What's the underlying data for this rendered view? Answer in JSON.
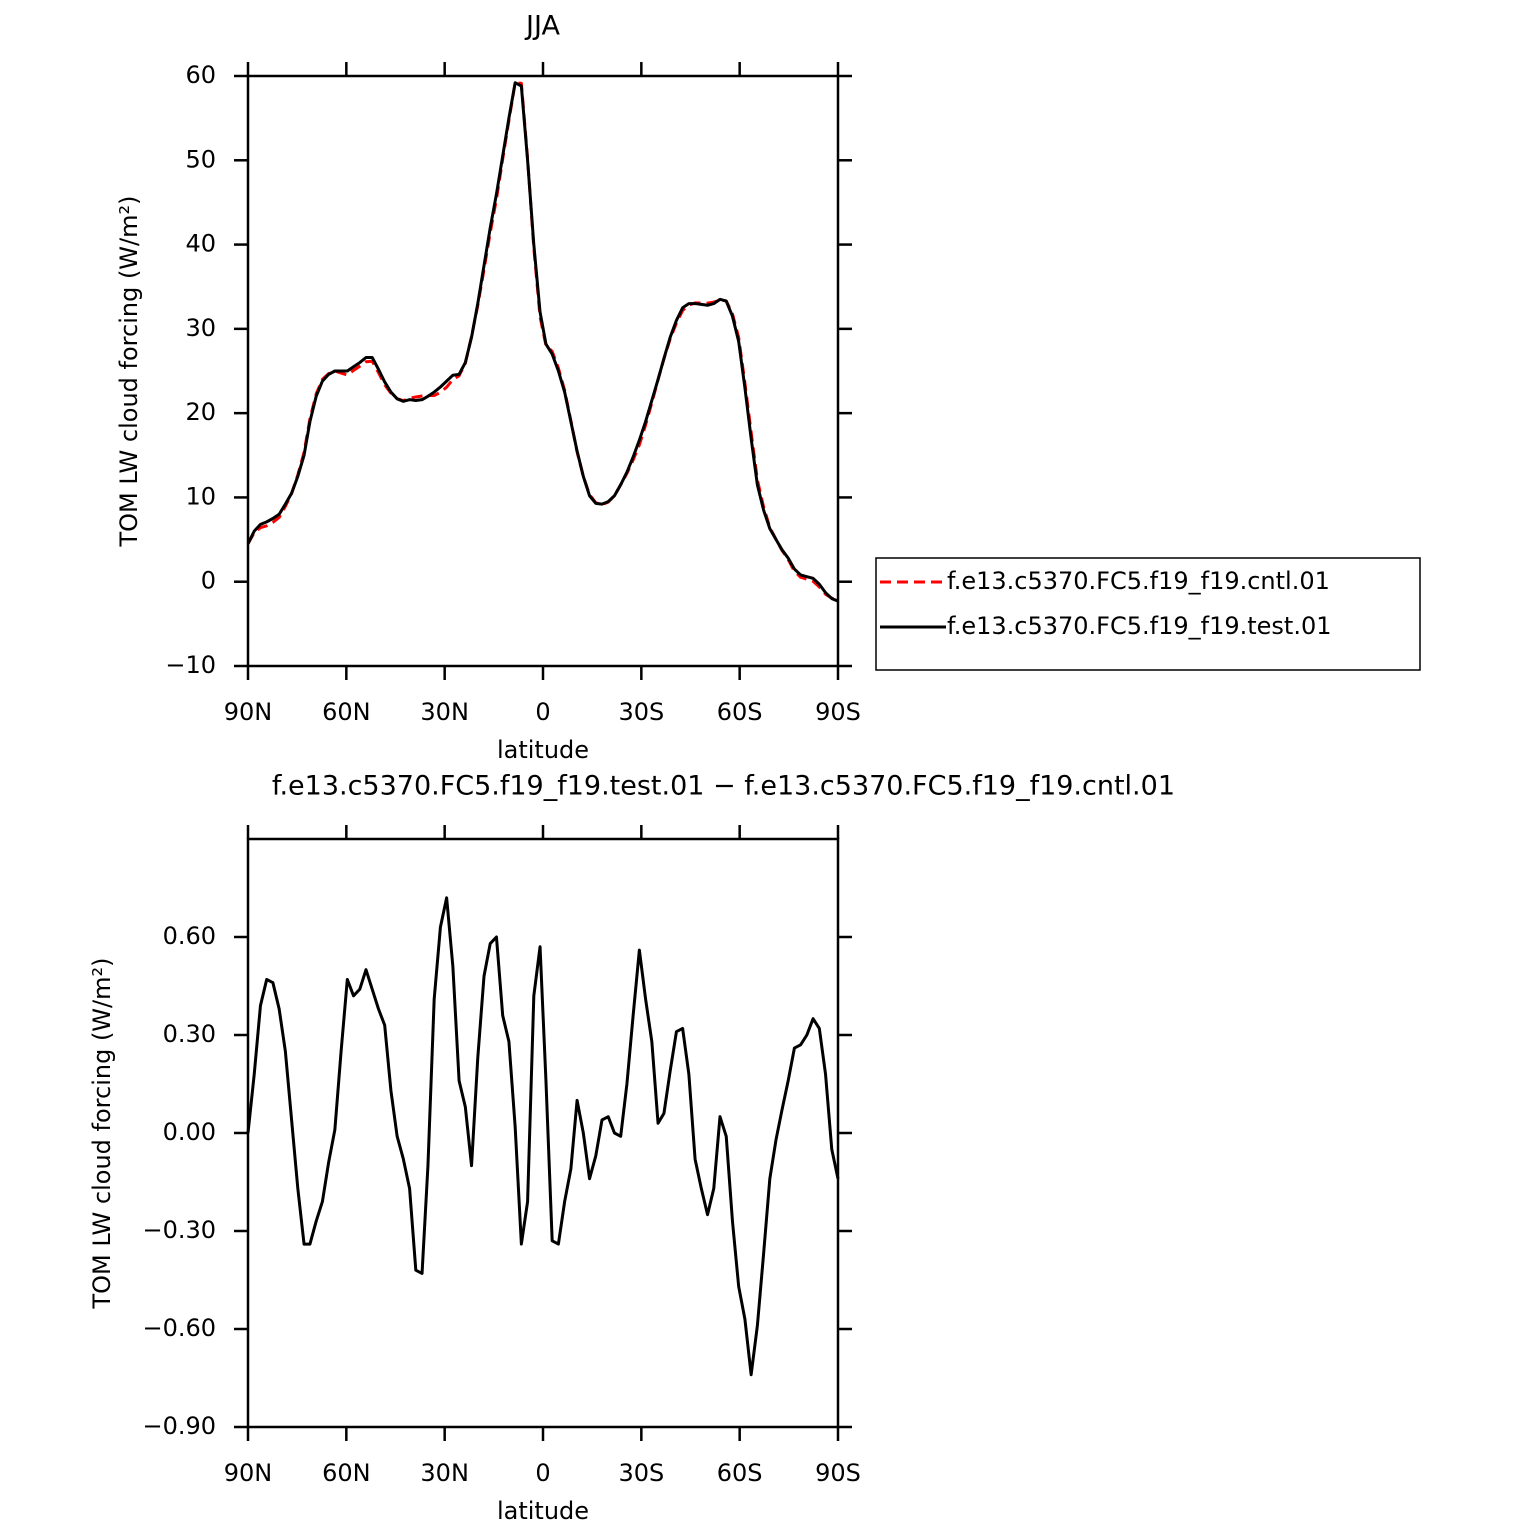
{
  "chart_data": [
    {
      "type": "line",
      "title": "JJA",
      "xlabel": "latitude",
      "ylabel": "TOM LW cloud forcing (W/m²)",
      "x": [
        90,
        88.1,
        86.2,
        84.3,
        82.4,
        80.5,
        78.6,
        76.7,
        74.8,
        72.9,
        71.1,
        69.2,
        67.3,
        65.4,
        63.5,
        61.6,
        59.7,
        57.8,
        55.9,
        54.0,
        52.1,
        50.2,
        48.3,
        46.4,
        44.5,
        42.6,
        40.7,
        38.8,
        36.9,
        35.1,
        33.2,
        31.3,
        29.4,
        27.5,
        25.6,
        23.7,
        21.8,
        19.9,
        18.0,
        16.1,
        14.2,
        12.3,
        10.4,
        8.5,
        6.6,
        4.7,
        2.8,
        0.9,
        -0.9,
        -2.8,
        -4.7,
        -6.6,
        -8.5,
        -10.4,
        -12.3,
        -14.2,
        -16.1,
        -18.0,
        -19.9,
        -21.8,
        -23.7,
        -25.6,
        -27.5,
        -29.4,
        -31.3,
        -33.2,
        -35.1,
        -36.9,
        -38.8,
        -40.7,
        -42.6,
        -44.5,
        -46.4,
        -48.3,
        -50.2,
        -52.1,
        -54.0,
        -55.9,
        -57.8,
        -59.7,
        -61.6,
        -63.5,
        -65.4,
        -67.3,
        -69.2,
        -71.1,
        -72.9,
        -74.8,
        -76.7,
        -78.6,
        -80.5,
        -82.4,
        -84.3,
        -86.2,
        -88.1,
        -90
      ],
      "series": [
        {
          "name": "f.e13.c5370.FC5.f19_f19.cntl.01",
          "color": "#ff0000",
          "linestyle": "dashed",
          "values": [
            4.5,
            5.82,
            6.41,
            6.63,
            7.04,
            7.62,
            8.95,
            10.46,
            12.67,
            15.34,
            19.34,
            22.27,
            24.01,
            24.69,
            24.99,
            24.75,
            24.53,
            25.08,
            25.56,
            26.1,
            26.16,
            24.82,
            23.37,
            22.37,
            21.71,
            21.48,
            21.77,
            21.92,
            22.03,
            22.1,
            22.09,
            22.47,
            23.08,
            23.99,
            24.44,
            25.92,
            29.1,
            32.77,
            37.02,
            41.42,
            45.4,
            50.14,
            54.72,
            59.18,
            59.14,
            50.21,
            39.58,
            31.43,
            28.04,
            27.33,
            25.34,
            22.71,
            19.11,
            15.4,
            12.5,
            10.34,
            9.37,
            9.16,
            9.45,
            10.2,
            11.51,
            12.85,
            14.44,
            16.24,
            18.59,
            21.22,
            23.97,
            26.44,
            28.81,
            30.69,
            32.18,
            32.82,
            33.08,
            33.07,
            33.05,
            33.17,
            33.45,
            33.31,
            31.77,
            28.97,
            23.57,
            17.74,
            12.09,
            8.87,
            6.44,
            5.02,
            3.73,
            2.64,
            1.24,
            0.53,
            0.3,
            0.05,
            -0.62,
            -1.48,
            -1.95,
            -2.16
          ]
        },
        {
          "name": "f.e13.c5370.FC5.f19_f19.test.01",
          "color": "#000000",
          "linestyle": "solid",
          "values": [
            4.5,
            6,
            6.8,
            7.1,
            7.5,
            8.0,
            9.2,
            10.5,
            12.5,
            15,
            19,
            22,
            23.8,
            24.6,
            25,
            25,
            25,
            25.5,
            26,
            26.6,
            26.6,
            25.2,
            23.7,
            22.5,
            21.7,
            21.4,
            21.6,
            21.5,
            21.6,
            22,
            22.5,
            23.1,
            23.8,
            24.5,
            24.6,
            26,
            29,
            33,
            37.5,
            42,
            46,
            50.5,
            55,
            59.2,
            58.8,
            50,
            40,
            32,
            28.2,
            27,
            25,
            22.5,
            19,
            15.5,
            12.5,
            10.2,
            9.3,
            9.2,
            9.5,
            10.2,
            11.5,
            13,
            14.8,
            16.8,
            19,
            21.5,
            24,
            26.5,
            29,
            31,
            32.5,
            33,
            33,
            32.9,
            32.8,
            33,
            33.5,
            33.3,
            31.5,
            28.5,
            23,
            17,
            11.5,
            8.5,
            6.3,
            5,
            3.8,
            2.8,
            1.5,
            0.8,
            0.6,
            0.4,
            -0.3,
            -1.3,
            -2,
            -2.3
          ]
        }
      ],
      "xlim": [
        90,
        -90
      ],
      "xticks": [
        {
          "value": 90,
          "label": "90N"
        },
        {
          "value": 60,
          "label": "60N"
        },
        {
          "value": 30,
          "label": "30N"
        },
        0,
        {
          "value": -30,
          "label": "30S"
        },
        {
          "value": -60,
          "label": "60S"
        },
        {
          "value": -90,
          "label": "90S"
        }
      ],
      "ylim": [
        -10,
        60
      ],
      "yticks": [
        {
          "value": -10,
          "label": "−10"
        },
        0,
        10,
        20,
        30,
        40,
        50,
        60
      ],
      "legend": "right"
    },
    {
      "type": "line",
      "title": "f.e13.c5370.FC5.f19_f19.test.01 − f.e13.c5370.FC5.f19_f19.cntl.01",
      "xlabel": "latitude",
      "ylabel": "TOM LW cloud forcing (W/m²)",
      "x": [
        90,
        88.1,
        86.2,
        84.3,
        82.4,
        80.5,
        78.6,
        76.7,
        74.8,
        72.9,
        71.1,
        69.2,
        67.3,
        65.4,
        63.5,
        61.6,
        59.7,
        57.8,
        55.9,
        54.0,
        52.1,
        50.2,
        48.3,
        46.4,
        44.5,
        42.6,
        40.7,
        38.8,
        36.9,
        35.1,
        33.2,
        31.3,
        29.4,
        27.5,
        25.6,
        23.7,
        21.8,
        19.9,
        18.0,
        16.1,
        14.2,
        12.3,
        10.4,
        8.5,
        6.6,
        4.7,
        2.8,
        0.9,
        -0.9,
        -2.8,
        -4.7,
        -6.6,
        -8.5,
        -10.4,
        -12.3,
        -14.2,
        -16.1,
        -18.0,
        -19.9,
        -21.8,
        -23.7,
        -25.6,
        -27.5,
        -29.4,
        -31.3,
        -33.2,
        -35.1,
        -36.9,
        -38.8,
        -40.7,
        -42.6,
        -44.5,
        -46.4,
        -48.3,
        -50.2,
        -52.1,
        -54.0,
        -55.9,
        -57.8,
        -59.7,
        -61.6,
        -63.5,
        -65.4,
        -67.3,
        -69.2,
        -71.1,
        -72.9,
        -74.8,
        -76.7,
        -78.6,
        -80.5,
        -82.4,
        -84.3,
        -86.2,
        -88.1,
        -90
      ],
      "values": [
        0,
        0.18,
        0.39,
        0.47,
        0.46,
        0.38,
        0.25,
        0.04,
        -0.17,
        -0.34,
        -0.34,
        -0.27,
        -0.21,
        -0.09,
        0.01,
        0.25,
        0.47,
        0.42,
        0.44,
        0.5,
        0.44,
        0.38,
        0.33,
        0.13,
        -0.01,
        -0.08,
        -0.17,
        -0.42,
        -0.43,
        -0.1,
        0.41,
        0.63,
        0.72,
        0.51,
        0.16,
        0.08,
        -0.1,
        0.23,
        0.48,
        0.58,
        0.6,
        0.36,
        0.28,
        0.02,
        -0.34,
        -0.21,
        0.42,
        0.57,
        0.16,
        -0.33,
        -0.34,
        -0.21,
        -0.11,
        0.1,
        0.0,
        -0.14,
        -0.07,
        0.04,
        0.05,
        0.0,
        -0.01,
        0.15,
        0.36,
        0.56,
        0.41,
        0.28,
        0.03,
        0.06,
        0.19,
        0.31,
        0.32,
        0.18,
        -0.08,
        -0.17,
        -0.25,
        -0.17,
        0.05,
        -0.01,
        -0.27,
        -0.47,
        -0.57,
        -0.74,
        -0.59,
        -0.37,
        -0.14,
        -0.02,
        0.07,
        0.16,
        0.26,
        0.27,
        0.3,
        0.35,
        0.32,
        0.18,
        -0.05,
        -0.14
      ],
      "color": "#000000",
      "xlim": [
        90,
        -90
      ],
      "xticks": [
        {
          "value": 90,
          "label": "90N"
        },
        {
          "value": 60,
          "label": "60N"
        },
        {
          "value": 30,
          "label": "30N"
        },
        0,
        {
          "value": -30,
          "label": "30S"
        },
        {
          "value": -60,
          "label": "60S"
        },
        {
          "value": -90,
          "label": "90S"
        }
      ],
      "ylim": [
        -0.9,
        0.9
      ],
      "yticks": [
        {
          "value": -0.9,
          "label": "−0.90"
        },
        {
          "value": -0.6,
          "label": "−0.60"
        },
        {
          "value": -0.3,
          "label": "−0.30"
        },
        {
          "value": 0,
          "label": "0.00"
        },
        {
          "value": 0.3,
          "label": "0.30"
        },
        {
          "value": 0.6,
          "label": "0.60"
        }
      ]
    }
  ]
}
